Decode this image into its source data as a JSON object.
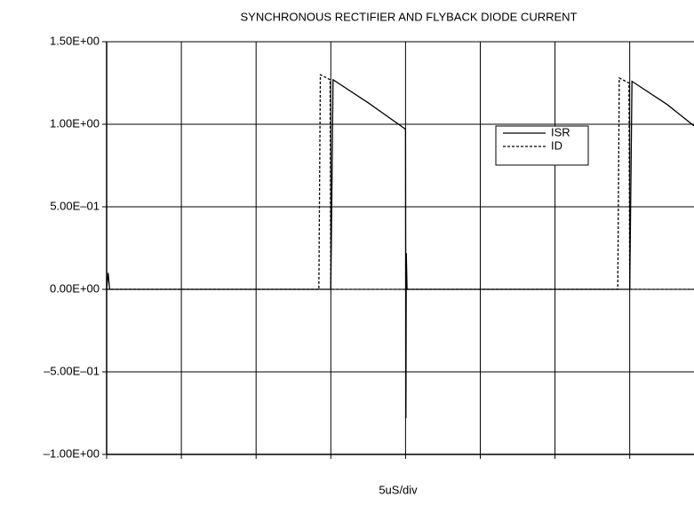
{
  "chart_data": {
    "type": "line",
    "title": "SYNCHRONOUS RECTIFIER AND FLYBACK DIODE CURRENT",
    "xlabel": "5uS/div",
    "xlim": [
      0,
      7.86
    ],
    "xticks": [
      0,
      1,
      2,
      3,
      4,
      5,
      6,
      7
    ],
    "ylim": [
      -1.0,
      1.5
    ],
    "yticks": [
      {
        "value": -1.0,
        "label": "–1.00E+00"
      },
      {
        "value": -0.5,
        "label": "–5.00E–01"
      },
      {
        "value": 0.0,
        "label": "0.00E+00"
      },
      {
        "value": 0.5,
        "label": "5.00E–01"
      },
      {
        "value": 1.0,
        "label": "1.00E+00"
      },
      {
        "value": 1.5,
        "label": "1.50E+00"
      }
    ],
    "grid": true,
    "legend": "upper right",
    "series": [
      {
        "name": "ISR",
        "color": "#000000",
        "dash": "solid",
        "x": [
          0,
          0.02,
          0.04,
          2.96,
          3.0,
          3.03,
          3.5,
          4.0,
          4.005,
          4.01,
          4.02,
          6.96,
          7.0,
          7.03,
          7.5,
          7.86
        ],
        "values": [
          0,
          0.1,
          0,
          0,
          0,
          1.27,
          1.13,
          0.97,
          -0.78,
          0.22,
          0,
          0,
          0,
          1.26,
          1.12,
          0.99
        ]
      },
      {
        "name": "ID",
        "color": "#000000",
        "dash": "dotted",
        "x": [
          0,
          2.84,
          2.86,
          2.99,
          3.0,
          6.84,
          6.86,
          6.99,
          7.0,
          7.86
        ],
        "values": [
          0,
          0,
          1.3,
          1.27,
          0,
          0,
          1.28,
          1.25,
          0,
          0
        ]
      }
    ]
  }
}
